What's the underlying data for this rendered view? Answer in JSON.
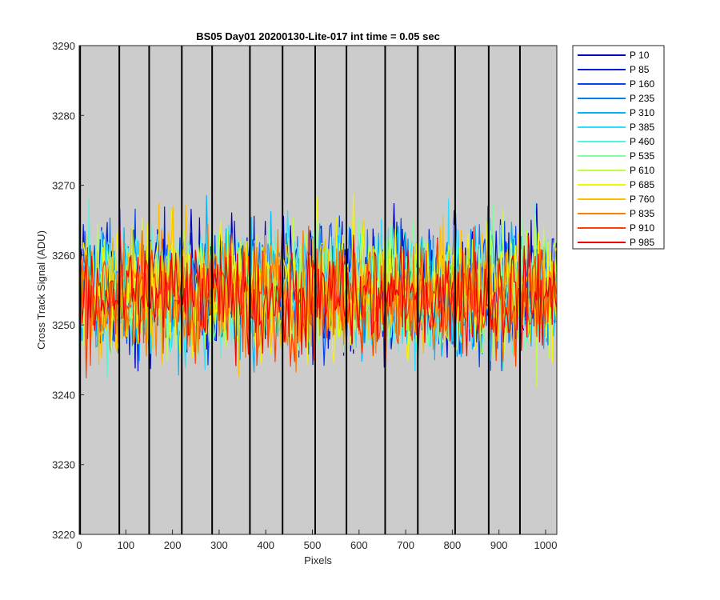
{
  "chart_data": {
    "type": "line",
    "title": "BS05 Day01 20200130-Lite-017 int time = 0.05 sec",
    "xlabel": "Pixels",
    "ylabel": "Cross Track Signal (ADU)",
    "xlim": [
      0,
      1024
    ],
    "ylim": [
      3220,
      3290
    ],
    "xticks": [
      0,
      100,
      200,
      300,
      400,
      500,
      600,
      700,
      800,
      900,
      1000
    ],
    "yticks": [
      3220,
      3230,
      3240,
      3250,
      3260,
      3270,
      3280,
      3290
    ],
    "xtick_labels": [
      "0",
      "100",
      "200",
      "300",
      "400",
      "500",
      "600",
      "700",
      "800",
      "900",
      "1000"
    ],
    "ytick_labels": [
      "3220",
      "3230",
      "3240",
      "3250",
      "3260",
      "3270",
      "3280",
      "3290"
    ],
    "background": "#cccccc",
    "vertical_lines_x": [
      2,
      86,
      150,
      220,
      285,
      366,
      436,
      506,
      573,
      656,
      726,
      806,
      878,
      945
    ],
    "legend_position": "outside-top-right",
    "series": [
      {
        "name": "P 10",
        "color": "#0000bf",
        "mean": 3256,
        "amplitude": 11
      },
      {
        "name": "P 85",
        "color": "#0019d9",
        "mean": 3255,
        "amplitude": 11
      },
      {
        "name": "P 160",
        "color": "#0046ec",
        "mean": 3255,
        "amplitude": 11
      },
      {
        "name": "P 235",
        "color": "#0080f5",
        "mean": 3255,
        "amplitude": 11
      },
      {
        "name": "P 310",
        "color": "#00b4fa",
        "mean": 3255,
        "amplitude": 11
      },
      {
        "name": "P 385",
        "color": "#2adfff",
        "mean": 3255,
        "amplitude": 11
      },
      {
        "name": "P 460",
        "color": "#4ef7e0",
        "mean": 3255,
        "amplitude": 11
      },
      {
        "name": "P 535",
        "color": "#80ff9f",
        "mean": 3255,
        "amplitude": 11
      },
      {
        "name": "P 610",
        "color": "#c0ff40",
        "mean": 3255,
        "amplitude": 11
      },
      {
        "name": "P 685",
        "color": "#f5f500",
        "mean": 3255,
        "amplitude": 11
      },
      {
        "name": "P 760",
        "color": "#ffbf00",
        "mean": 3255,
        "amplitude": 11
      },
      {
        "name": "P 835",
        "color": "#ff8000",
        "mean": 3254,
        "amplitude": 10
      },
      {
        "name": "P 910",
        "color": "#ff4000",
        "mean": 3254,
        "amplitude": 10
      },
      {
        "name": "P 985",
        "color": "#f00000",
        "mean": 3254,
        "amplitude": 9
      }
    ]
  }
}
